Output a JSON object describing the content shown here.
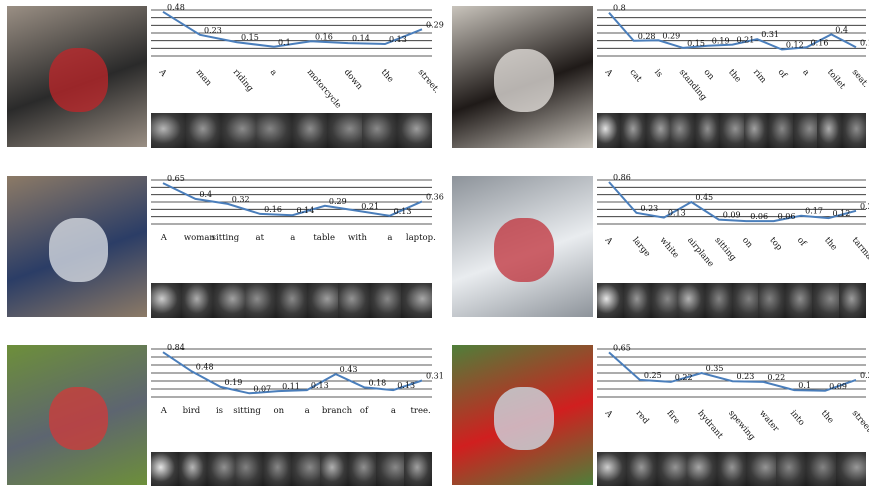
{
  "figure": {
    "panels": [
      {
        "photo": "man riding motorcycle",
        "label_rotation": 50,
        "colors": {
          "photo_bg": "#9a8f84",
          "photo_fg": "#2a2a2a",
          "accent": "#c0252a"
        }
      },
      {
        "photo": "cat on toilet",
        "label_rotation": 50,
        "colors": {
          "photo_bg": "#c9c4bc",
          "photo_fg": "#1f1a18",
          "accent": "#e9e6e1"
        }
      },
      {
        "photo": "woman at desk with laptop",
        "label_rotation": 0,
        "colors": {
          "photo_bg": "#8c7a66",
          "photo_fg": "#2b3d66",
          "accent": "#dfe3ea"
        }
      },
      {
        "photo": "airplane on tarmac",
        "label_rotation": 50,
        "colors": {
          "photo_bg": "#8d939a",
          "photo_fg": "#e9ecef",
          "accent": "#c0303a"
        }
      },
      {
        "photo": "bird on branch",
        "label_rotation": 0,
        "colors": {
          "photo_bg": "#6d8f3a",
          "photo_fg": "#5d6570",
          "accent": "#d23a3a"
        }
      },
      {
        "photo": "red fire hydrant spewing water",
        "label_rotation": 50,
        "colors": {
          "photo_bg": "#4f7f3a",
          "photo_fg": "#d01f1f",
          "accent": "#cfe3ef"
        }
      }
    ]
  },
  "chart_data": [
    {
      "type": "line",
      "x": [
        "A",
        "man",
        "riding",
        "a",
        "motorcycle",
        "down",
        "the",
        "street."
      ],
      "series": [
        {
          "values": [
            0.48,
            0.23,
            0.15,
            0.1,
            0.16,
            0.14,
            0.13,
            0.29
          ]
        }
      ],
      "value_labels": [
        "0.48",
        "0.23",
        "0.15",
        "0.1",
        "0.16",
        "0.14",
        "0.13",
        "0.29"
      ],
      "ylim": [
        0,
        0.5
      ],
      "grid": true,
      "line_color": "#4a7ebb"
    },
    {
      "type": "line",
      "x": [
        "A",
        "cat",
        "is",
        "standing",
        "on",
        "the",
        "rim",
        "of",
        "a",
        "toilet",
        "seat."
      ],
      "series": [
        {
          "values": [
            0.8,
            0.28,
            0.29,
            0.15,
            0.19,
            0.21,
            0.31,
            0.12,
            0.16,
            0.4,
            0.16
          ]
        }
      ],
      "value_labels": [
        "0.8",
        "0.28",
        "0.29",
        "0.15",
        "0.19",
        "0.21",
        "0.31",
        "0.12",
        "0.16",
        "0.4",
        "0.16"
      ],
      "ylim": [
        0,
        0.85
      ],
      "grid": true,
      "line_color": "#4a7ebb"
    },
    {
      "type": "line",
      "x": [
        "A",
        "woman",
        "sitting",
        "at",
        "a",
        "table",
        "with",
        "a",
        "laptop."
      ],
      "series": [
        {
          "values": [
            0.65,
            0.4,
            0.32,
            0.16,
            0.14,
            0.29,
            0.21,
            0.13,
            0.36
          ]
        }
      ],
      "value_labels": [
        "0.65",
        "0.4",
        "0.32",
        "0.16",
        "0.14",
        "0.29",
        "0.21",
        "0.13",
        "0.36"
      ],
      "ylim": [
        0,
        0.7
      ],
      "grid": true,
      "line_color": "#4a7ebb"
    },
    {
      "type": "line",
      "x": [
        "A",
        "large",
        "white",
        "airplane",
        "sitting",
        "on",
        "top",
        "of",
        "the",
        "tarmac."
      ],
      "series": [
        {
          "values": [
            0.86,
            0.23,
            0.13,
            0.45,
            0.09,
            0.06,
            0.06,
            0.17,
            0.12,
            0.27
          ]
        }
      ],
      "value_labels": [
        "0.86",
        "0.23",
        "0.13",
        "0.45",
        "0.09",
        "0.06",
        "0.06",
        "0.17",
        "0.12",
        "0.27"
      ],
      "ylim": [
        0,
        0.9
      ],
      "grid": true,
      "line_color": "#4a7ebb"
    },
    {
      "type": "line",
      "x": [
        "A",
        "bird",
        "is",
        "sitting",
        "on",
        "a",
        "branch",
        "of",
        "a",
        "tree."
      ],
      "series": [
        {
          "values": [
            0.84,
            0.48,
            0.19,
            0.07,
            0.11,
            0.13,
            0.43,
            0.18,
            0.13,
            0.31
          ]
        }
      ],
      "value_labels": [
        "0.84",
        "0.48",
        "0.19",
        "0.07",
        "0.11",
        "0.13",
        "0.43",
        "0.18",
        "0.13",
        "0.31"
      ],
      "ylim": [
        0,
        0.9
      ],
      "grid": true,
      "line_color": "#4a7ebb"
    },
    {
      "type": "line",
      "x": [
        "A",
        "red",
        "fire",
        "hydrant",
        "spewing",
        "water",
        "into",
        "the",
        "street."
      ],
      "series": [
        {
          "values": [
            0.65,
            0.25,
            0.22,
            0.35,
            0.23,
            0.22,
            0.1,
            0.09,
            0.25
          ]
        }
      ],
      "value_labels": [
        "0.65",
        "0.25",
        "0.22",
        "0.35",
        "0.23",
        "0.22",
        "0.1",
        "0.09",
        "0.25"
      ],
      "ylim": [
        0,
        0.7
      ],
      "grid": true,
      "line_color": "#4a7ebb"
    }
  ]
}
